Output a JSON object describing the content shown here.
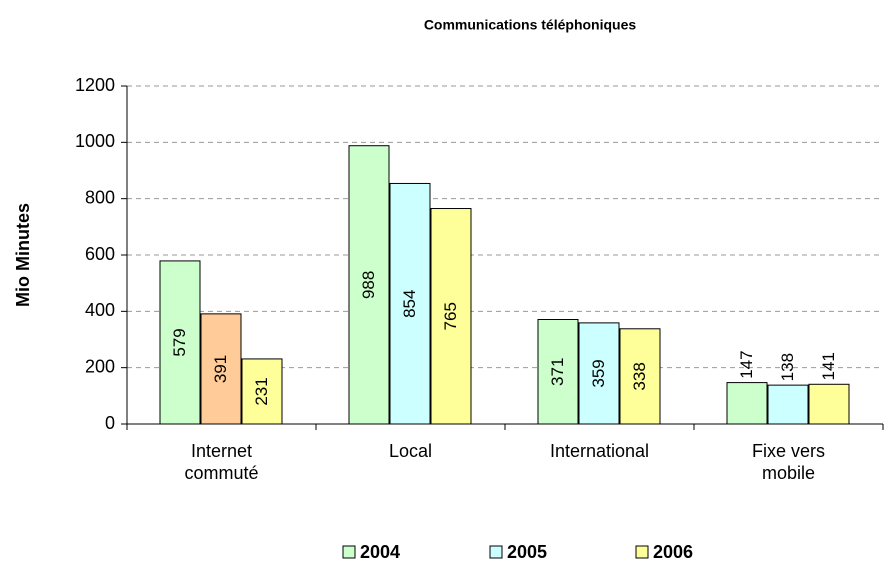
{
  "chart_data": {
    "type": "bar",
    "title": "Communications téléphoniques",
    "y_label": "Mio Minutes",
    "categories": [
      "Internet commuté",
      "Local",
      "International",
      "Fixe vers mobile"
    ],
    "series": [
      {
        "name": "2004",
        "color": "#ccffcc",
        "values": [
          579,
          988,
          371,
          147
        ]
      },
      {
        "name": "2005",
        "color": "#ccffff",
        "colors": [
          "#ffcc99",
          "#ccffff",
          "#ccffff",
          "#ccffff"
        ],
        "values": [
          391,
          854,
          359,
          138
        ]
      },
      {
        "name": "2006",
        "color": "#ffff99",
        "values": [
          231,
          765,
          338,
          141
        ]
      }
    ],
    "ylim": [
      0,
      1200
    ],
    "yticks": [
      0,
      200,
      400,
      600,
      800,
      1000,
      1200
    ],
    "grid": true,
    "legend": "bottom"
  }
}
